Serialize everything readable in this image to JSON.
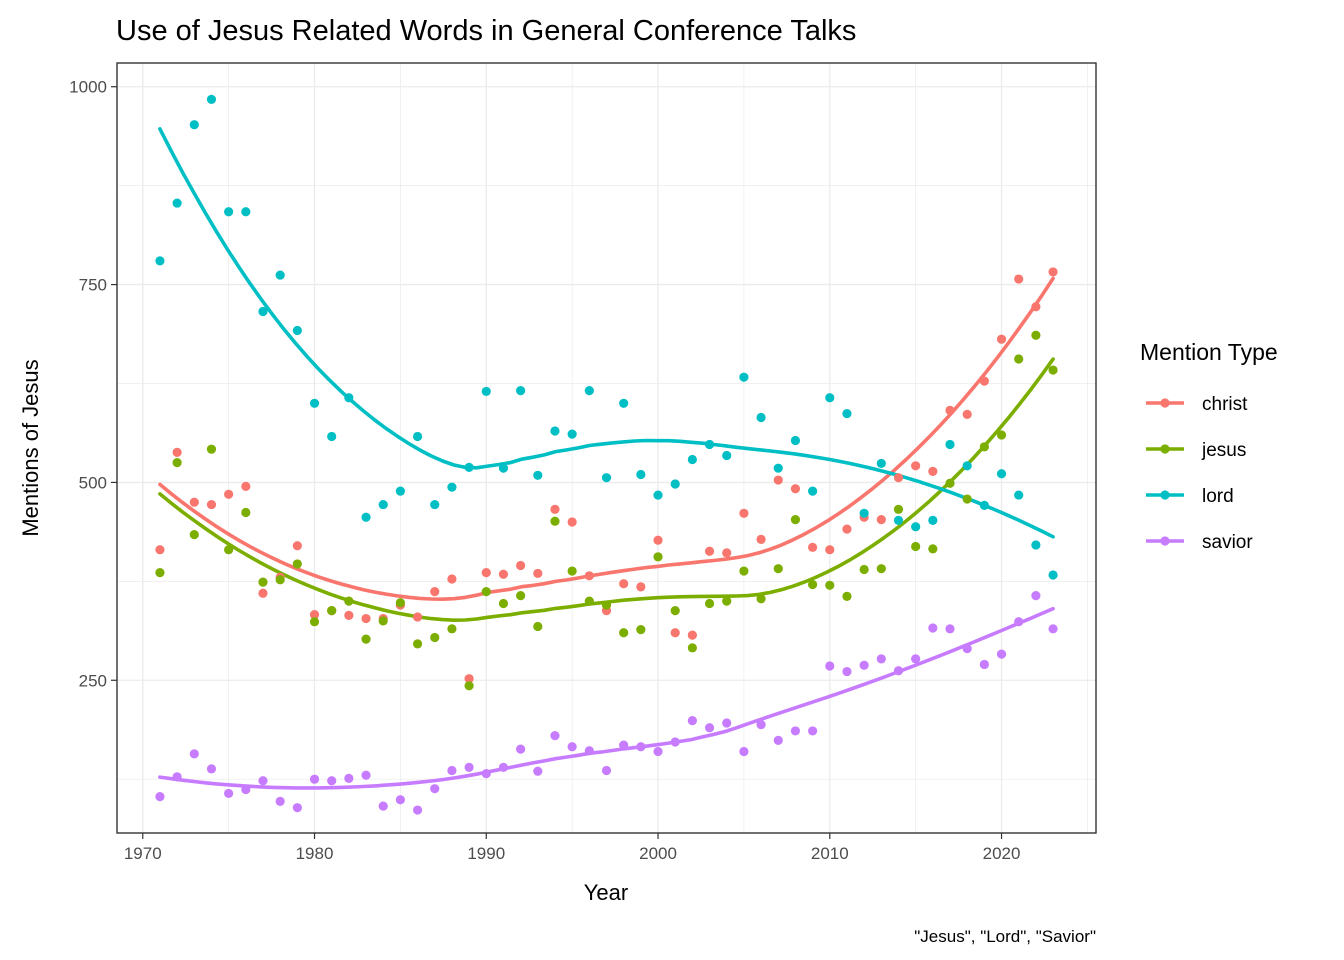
{
  "chart_data": {
    "type": "scatter",
    "title": "Use of Jesus Related Words in General Conference Talks",
    "xlabel": "Year",
    "ylabel": "Mentions of Jesus",
    "caption": "\"Jesus\", \"Lord\", \"Savior\"",
    "xlim": [
      1968.5,
      2025.5
    ],
    "ylim": [
      57,
      1030
    ],
    "x_ticks": [
      1970,
      1980,
      1990,
      2000,
      2010,
      2020
    ],
    "y_ticks": [
      250,
      500,
      750,
      1000
    ],
    "grid": true,
    "legend": {
      "title": "Mention Type",
      "placement": "right"
    },
    "smooth": true,
    "x": [
      1971,
      1972,
      1973,
      1974,
      1975,
      1976,
      1977,
      1978,
      1979,
      1980,
      1981,
      1982,
      1983,
      1984,
      1985,
      1986,
      1987,
      1988,
      1989,
      1990,
      1991,
      1992,
      1993,
      1994,
      1995,
      1996,
      1997,
      1998,
      1999,
      2000,
      2001,
      2002,
      2003,
      2004,
      2005,
      2006,
      2007,
      2008,
      2009,
      2010,
      2011,
      2012,
      2013,
      2014,
      2015,
      2016,
      2017,
      2018,
      2019,
      2020,
      2021,
      2022,
      2023
    ],
    "series": [
      {
        "name": "christ",
        "color": "#F8766D",
        "values": [
          415,
          538,
          475,
          472,
          485,
          495,
          360,
          380,
          420,
          333,
          338,
          332,
          328,
          328,
          345,
          330,
          362,
          378,
          252,
          386,
          384,
          395,
          385,
          466,
          450,
          382,
          338,
          372,
          368,
          427,
          310,
          307,
          413,
          411,
          461,
          428,
          503,
          492,
          418,
          415,
          441,
          456,
          453,
          506,
          521,
          514,
          591,
          586,
          628,
          681,
          757,
          722,
          766
        ]
      },
      {
        "name": "jesus",
        "color": "#7CAE00",
        "values": [
          386,
          525,
          434,
          542,
          415,
          462,
          374,
          377,
          397,
          324,
          338,
          350,
          302,
          325,
          348,
          296,
          304,
          315,
          243,
          362,
          347,
          357,
          318,
          451,
          388,
          350,
          345,
          310,
          314,
          406,
          338,
          291,
          347,
          350,
          388,
          353,
          391,
          453,
          371,
          370,
          356,
          390,
          391,
          466,
          419,
          416,
          499,
          479,
          545,
          560,
          656,
          686,
          642
        ]
      },
      {
        "name": "lord",
        "color": "#00BFC4",
        "values": [
          780,
          853,
          952,
          984,
          842,
          842,
          716,
          762,
          692,
          600,
          558,
          607,
          456,
          472,
          489,
          558,
          472,
          494,
          519,
          615,
          518,
          616,
          509,
          565,
          561,
          616,
          506,
          600,
          510,
          484,
          498,
          529,
          548,
          534,
          633,
          582,
          518,
          553,
          489,
          607,
          587,
          461,
          524,
          452,
          444,
          452,
          548,
          521,
          471,
          511,
          484,
          421,
          383
        ]
      },
      {
        "name": "savior",
        "color": "#C77CFF",
        "values": [
          103,
          128,
          157,
          138,
          107,
          112,
          123,
          97,
          89,
          125,
          123,
          126,
          130,
          91,
          99,
          86,
          113,
          136,
          140,
          132,
          140,
          163,
          135,
          180,
          166,
          161,
          136,
          168,
          166,
          160,
          172,
          199,
          190,
          196,
          160,
          194,
          174,
          186,
          186,
          268,
          261,
          269,
          277,
          262,
          277,
          316,
          315,
          290,
          270,
          283,
          324,
          357,
          315
        ]
      }
    ]
  }
}
